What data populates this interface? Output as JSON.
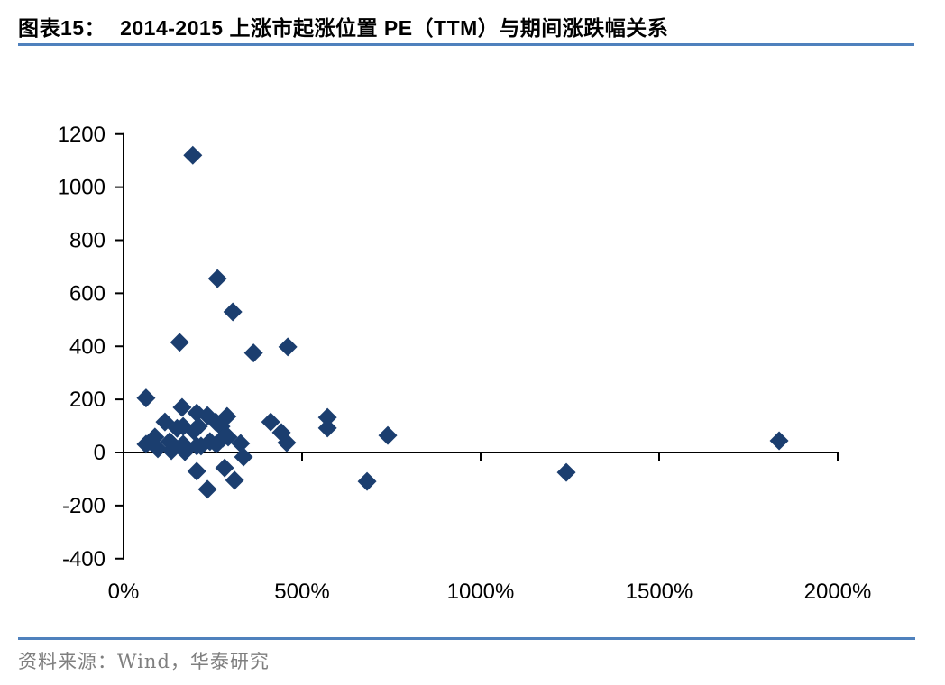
{
  "header": {
    "figure_label": "图表15：",
    "title": "2014-2015 上涨市起涨位置 PE（TTM）与期间涨跌幅关系"
  },
  "chart_data": {
    "type": "scatter",
    "title": "2014-2015 上涨市起涨位置 PE（TTM）与期间涨跌幅关系",
    "xlabel": "",
    "ylabel": "",
    "xlim": [
      0,
      2000
    ],
    "ylim": [
      -400,
      1200
    ],
    "grid": false,
    "legend": "none",
    "x_tick_values": [
      0,
      500,
      1000,
      1500,
      2000
    ],
    "x_tick_labels": [
      "0%",
      "500%",
      "1000%",
      "1500%",
      "2000%"
    ],
    "y_tick_values": [
      -400,
      -200,
      0,
      200,
      400,
      600,
      800,
      1000,
      1200
    ],
    "y_tick_labels": [
      "-400",
      "-200",
      "0",
      "200",
      "400",
      "600",
      "800",
      "1000",
      "1200"
    ],
    "marker": {
      "shape": "diamond",
      "color": "#1b3e6f",
      "size": 21
    },
    "axis_color": "#000000",
    "points": [
      [
        194,
        1120
      ],
      [
        263,
        655
      ],
      [
        306,
        530
      ],
      [
        157,
        415
      ],
      [
        460,
        398
      ],
      [
        364,
        375
      ],
      [
        63,
        205
      ],
      [
        164,
        170
      ],
      [
        205,
        149
      ],
      [
        235,
        139
      ],
      [
        290,
        136
      ],
      [
        571,
        132
      ],
      [
        116,
        115
      ],
      [
        258,
        115
      ],
      [
        412,
        115
      ],
      [
        167,
        98
      ],
      [
        210,
        98
      ],
      [
        273,
        98
      ],
      [
        571,
        92
      ],
      [
        150,
        91
      ],
      [
        197,
        81
      ],
      [
        442,
        75
      ],
      [
        740,
        64
      ],
      [
        88,
        58
      ],
      [
        293,
        58
      ],
      [
        278,
        54
      ],
      [
        1836,
        44
      ],
      [
        129,
        41
      ],
      [
        242,
        41
      ],
      [
        457,
        37
      ],
      [
        328,
        34
      ],
      [
        63,
        31
      ],
      [
        167,
        31
      ],
      [
        260,
        31
      ],
      [
        205,
        24
      ],
      [
        217,
        24
      ],
      [
        96,
        14
      ],
      [
        134,
        7
      ],
      [
        172,
        3
      ],
      [
        336,
        -17
      ],
      [
        283,
        -58
      ],
      [
        205,
        -71
      ],
      [
        1240,
        -75
      ],
      [
        311,
        -105
      ],
      [
        682,
        -109
      ],
      [
        235,
        -139
      ]
    ]
  },
  "footer": {
    "source": "资料来源：Wind，华泰研究"
  }
}
